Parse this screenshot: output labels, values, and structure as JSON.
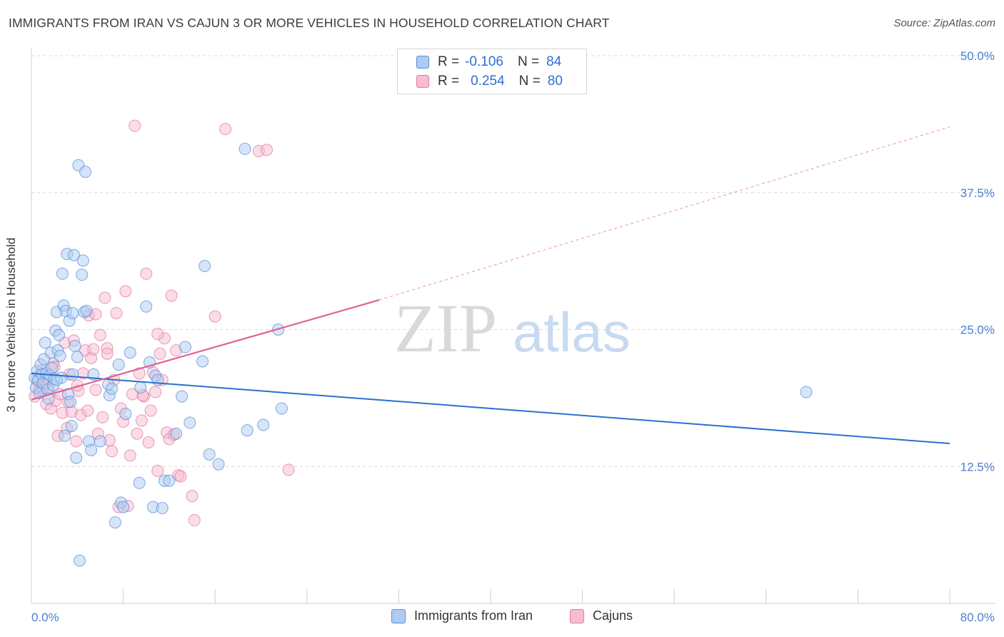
{
  "title": "IMMIGRANTS FROM IRAN VS CAJUN 3 OR MORE VEHICLES IN HOUSEHOLD CORRELATION CHART",
  "source": "Source: ZipAtlas.com",
  "watermark": {
    "zip": "ZIP",
    "atlas": "atlas"
  },
  "legend_top": {
    "rows": [
      {
        "r_label": "R =",
        "r_value": "-0.106",
        "n_label": "N =",
        "n_value": "84"
      },
      {
        "r_label": "R =",
        "r_value": "0.254",
        "n_label": "N =",
        "n_value": "80"
      }
    ]
  },
  "legend_bottom": {
    "items": [
      {
        "label": "Immigrants from Iran"
      },
      {
        "label": "Cajuns"
      }
    ]
  },
  "colors": {
    "iran_fill": "#aecbf2",
    "iran_stroke": "#5b8fd8",
    "iran_line": "#2b6fd0",
    "cajun_fill": "#f7bcd0",
    "cajun_stroke": "#e07aa0",
    "cajun_line": "#e0648f",
    "axis_label": "#4a7fd6",
    "grid": "#d8d8d8"
  },
  "chart_data": {
    "type": "scatter",
    "title": "IMMIGRANTS FROM IRAN VS CAJUN 3 OR MORE VEHICLES IN HOUSEHOLD CORRELATION CHART",
    "xlabel": "",
    "ylabel": "3 or more Vehicles in Household",
    "xlim": [
      0,
      80
    ],
    "ylim": [
      0,
      50
    ],
    "x_tick_labels": [
      "0.0%",
      "80.0%"
    ],
    "y_tick_labels": [
      "12.5%",
      "25.0%",
      "37.5%",
      "50.0%"
    ],
    "y_ticks": [
      12.5,
      25.0,
      37.5,
      50.0
    ],
    "grid": "horizontal dashed",
    "legend_position": "top-center",
    "series": [
      {
        "name": "Immigrants from Iran",
        "R": -0.106,
        "N": 84,
        "trend": {
          "x": [
            0,
            80
          ],
          "y": [
            21.0,
            14.6
          ]
        },
        "points": [
          [
            0.3,
            20.6
          ],
          [
            0.4,
            19.7
          ],
          [
            0.5,
            21.2
          ],
          [
            0.6,
            20.4
          ],
          [
            0.7,
            19.2
          ],
          [
            0.8,
            21.8
          ],
          [
            0.9,
            20.9
          ],
          [
            1.0,
            20.1
          ],
          [
            1.1,
            22.3
          ],
          [
            1.2,
            23.8
          ],
          [
            1.3,
            21.0
          ],
          [
            1.4,
            19.5
          ],
          [
            1.5,
            18.7
          ],
          [
            1.6,
            20.8
          ],
          [
            1.7,
            22.9
          ],
          [
            1.8,
            21.5
          ],
          [
            1.9,
            19.9
          ],
          [
            2.0,
            20.5
          ],
          [
            2.1,
            24.9
          ],
          [
            2.2,
            26.6
          ],
          [
            2.3,
            23.1
          ],
          [
            2.4,
            24.5
          ],
          [
            2.5,
            22.6
          ],
          [
            2.6,
            20.6
          ],
          [
            2.7,
            30.1
          ],
          [
            2.8,
            27.2
          ],
          [
            2.9,
            15.3
          ],
          [
            3.0,
            26.7
          ],
          [
            3.1,
            31.9
          ],
          [
            3.2,
            19.1
          ],
          [
            3.3,
            25.8
          ],
          [
            3.4,
            18.4
          ],
          [
            3.5,
            16.2
          ],
          [
            3.6,
            20.9
          ],
          [
            3.7,
            31.8
          ],
          [
            3.8,
            23.5
          ],
          [
            3.9,
            13.3
          ],
          [
            4.0,
            22.5
          ],
          [
            4.1,
            40.0
          ],
          [
            4.2,
            3.9
          ],
          [
            4.4,
            30.0
          ],
          [
            4.5,
            31.3
          ],
          [
            4.6,
            26.6
          ],
          [
            4.7,
            39.4
          ],
          [
            4.8,
            26.7
          ],
          [
            5.0,
            14.8
          ],
          [
            5.2,
            14.0
          ],
          [
            5.4,
            20.9
          ],
          [
            6.0,
            14.8
          ],
          [
            6.7,
            20.0
          ],
          [
            6.8,
            19.0
          ],
          [
            7.0,
            19.6
          ],
          [
            7.3,
            7.4
          ],
          [
            7.6,
            21.8
          ],
          [
            7.8,
            9.2
          ],
          [
            8.0,
            8.8
          ],
          [
            8.2,
            17.3
          ],
          [
            8.6,
            22.9
          ],
          [
            9.4,
            11.0
          ],
          [
            9.5,
            19.7
          ],
          [
            10.0,
            27.1
          ],
          [
            10.3,
            22.0
          ],
          [
            10.6,
            8.8
          ],
          [
            10.8,
            20.8
          ],
          [
            11.0,
            20.4
          ],
          [
            11.4,
            8.7
          ],
          [
            11.6,
            11.2
          ],
          [
            12.0,
            11.2
          ],
          [
            12.6,
            15.5
          ],
          [
            13.1,
            18.9
          ],
          [
            13.4,
            23.4
          ],
          [
            13.8,
            16.5
          ],
          [
            14.9,
            22.1
          ],
          [
            15.1,
            30.8
          ],
          [
            15.5,
            13.6
          ],
          [
            16.3,
            12.7
          ],
          [
            18.6,
            41.5
          ],
          [
            18.8,
            15.8
          ],
          [
            20.2,
            16.3
          ],
          [
            21.5,
            25.0
          ],
          [
            21.8,
            17.8
          ],
          [
            67.5,
            19.3
          ],
          [
            3.6,
            26.5
          ],
          [
            2.2,
            20.4
          ]
        ]
      },
      {
        "name": "Cajuns",
        "R": 0.254,
        "N": 80,
        "trend": {
          "x": [
            0,
            30.3
          ],
          "y": [
            18.6,
            27.7
          ],
          "dashed_extension": {
            "x": [
              30.3,
              80
            ],
            "y": [
              27.7,
              43.5
            ]
          }
        },
        "points": [
          [
            0.3,
            18.9
          ],
          [
            0.5,
            20.3
          ],
          [
            0.7,
            19.5
          ],
          [
            0.9,
            21.2
          ],
          [
            1.1,
            20.0
          ],
          [
            1.3,
            18.2
          ],
          [
            1.5,
            19.6
          ],
          [
            1.7,
            17.8
          ],
          [
            1.9,
            21.9
          ],
          [
            2.1,
            18.5
          ],
          [
            2.3,
            15.3
          ],
          [
            2.5,
            19.1
          ],
          [
            2.7,
            17.4
          ],
          [
            2.9,
            23.8
          ],
          [
            3.1,
            16.0
          ],
          [
            3.3,
            20.9
          ],
          [
            3.5,
            17.5
          ],
          [
            3.7,
            24.0
          ],
          [
            3.9,
            14.8
          ],
          [
            4.1,
            19.4
          ],
          [
            4.3,
            17.2
          ],
          [
            4.5,
            21.0
          ],
          [
            4.7,
            23.1
          ],
          [
            4.9,
            17.6
          ],
          [
            5.0,
            26.3
          ],
          [
            5.2,
            22.4
          ],
          [
            5.4,
            23.2
          ],
          [
            5.6,
            26.4
          ],
          [
            5.8,
            15.5
          ],
          [
            6.0,
            24.5
          ],
          [
            6.2,
            17.0
          ],
          [
            6.4,
            27.9
          ],
          [
            6.6,
            23.3
          ],
          [
            6.8,
            14.9
          ],
          [
            7.0,
            13.9
          ],
          [
            7.2,
            20.4
          ],
          [
            7.4,
            26.5
          ],
          [
            7.6,
            8.8
          ],
          [
            7.8,
            17.8
          ],
          [
            8.0,
            16.6
          ],
          [
            8.2,
            28.5
          ],
          [
            8.4,
            8.9
          ],
          [
            8.6,
            13.5
          ],
          [
            8.8,
            19.1
          ],
          [
            9.0,
            43.6
          ],
          [
            9.2,
            15.5
          ],
          [
            9.4,
            21.0
          ],
          [
            9.6,
            16.7
          ],
          [
            9.8,
            18.9
          ],
          [
            10.0,
            30.1
          ],
          [
            10.2,
            14.7
          ],
          [
            10.4,
            17.6
          ],
          [
            10.6,
            21.1
          ],
          [
            10.8,
            19.3
          ],
          [
            11.0,
            12.1
          ],
          [
            11.2,
            22.8
          ],
          [
            11.4,
            20.4
          ],
          [
            11.6,
            24.2
          ],
          [
            11.8,
            15.6
          ],
          [
            12.0,
            15.0
          ],
          [
            12.2,
            28.1
          ],
          [
            12.4,
            15.4
          ],
          [
            12.6,
            23.1
          ],
          [
            12.8,
            11.7
          ],
          [
            13.0,
            11.6
          ],
          [
            14.0,
            9.8
          ],
          [
            14.2,
            7.6
          ],
          [
            16.0,
            26.2
          ],
          [
            16.9,
            43.3
          ],
          [
            19.8,
            41.3
          ],
          [
            20.5,
            41.4
          ],
          [
            22.4,
            12.2
          ],
          [
            3.2,
            18.4
          ],
          [
            1.0,
            19.7
          ],
          [
            2.0,
            21.6
          ],
          [
            4.0,
            19.9
          ],
          [
            5.6,
            19.5
          ],
          [
            6.6,
            22.8
          ],
          [
            9.7,
            19.0
          ],
          [
            11.0,
            24.6
          ]
        ]
      }
    ]
  }
}
